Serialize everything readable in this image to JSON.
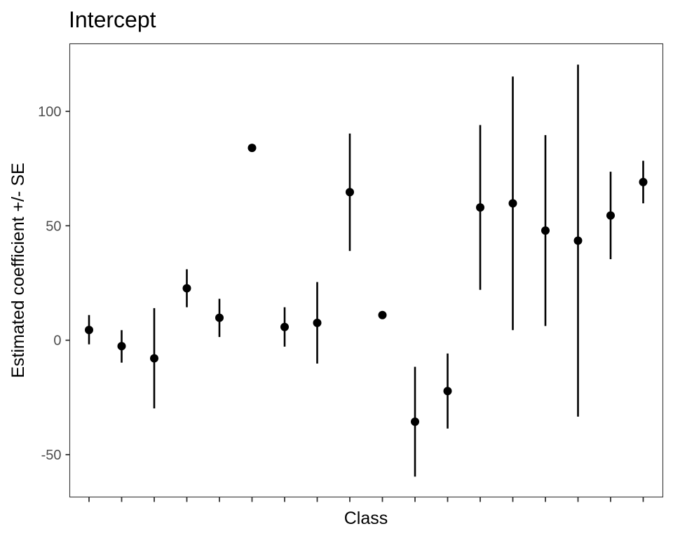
{
  "chart_data": {
    "type": "scatter",
    "title": "Intercept",
    "xlabel": "Class",
    "ylabel": "Estimated coefficient +/- SE",
    "ylim": [
      -68.5,
      129.5
    ],
    "y_ticks": [
      -50,
      0,
      50,
      100
    ],
    "grid": false,
    "x_categories": 18,
    "points": [
      {
        "y": 4.5,
        "lo": -1.8,
        "hi": 11.0
      },
      {
        "y": -2.6,
        "lo": -9.8,
        "hi": 4.4
      },
      {
        "y": -7.9,
        "lo": -29.8,
        "hi": 14.0
      },
      {
        "y": 22.7,
        "lo": 14.4,
        "hi": 31.0
      },
      {
        "y": 9.8,
        "lo": 1.4,
        "hi": 18.1
      },
      {
        "y": 84.0,
        "lo": 84.0,
        "hi": 84.0
      },
      {
        "y": 5.8,
        "lo": -2.8,
        "hi": 14.4
      },
      {
        "y": 7.6,
        "lo": -10.2,
        "hi": 25.4
      },
      {
        "y": 64.7,
        "lo": 39.0,
        "hi": 90.3
      },
      {
        "y": 11.0,
        "lo": 11.0,
        "hi": 11.0
      },
      {
        "y": -35.6,
        "lo": -59.6,
        "hi": -11.6
      },
      {
        "y": -22.2,
        "lo": -38.6,
        "hi": -5.8
      },
      {
        "y": 58.0,
        "lo": 22.0,
        "hi": 94.0
      },
      {
        "y": 59.8,
        "lo": 4.4,
        "hi": 115.2
      },
      {
        "y": 47.9,
        "lo": 6.2,
        "hi": 89.6
      },
      {
        "y": 43.5,
        "lo": -33.4,
        "hi": 120.4
      },
      {
        "y": 54.5,
        "lo": 35.4,
        "hi": 73.6
      },
      {
        "y": 69.1,
        "lo": 59.8,
        "hi": 78.4
      }
    ]
  }
}
